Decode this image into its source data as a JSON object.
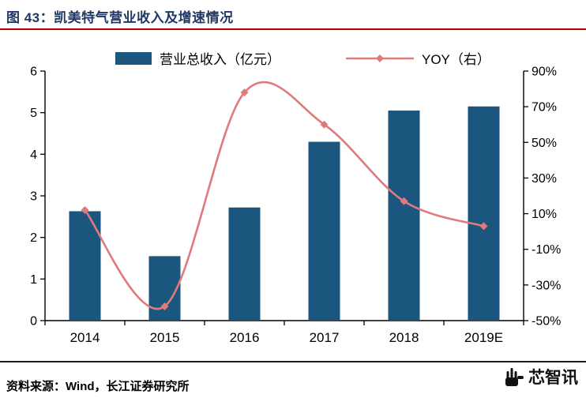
{
  "header": {
    "title": "图 43：凯美特气营业收入及增速情况"
  },
  "footer": {
    "source": "资料来源：Wind，长江证券研究所"
  },
  "logo": {
    "text": "芯智讯"
  },
  "colors": {
    "bar": "#1B567F",
    "line": "#E17A7C",
    "title": "#1F3864",
    "title_rule": "#BF0000",
    "axis": "#000000"
  },
  "chart_data": {
    "type": "bar",
    "subtype": "bar+line combo with dual y-axes",
    "title": "图 43：凯美特气营业收入及增速情况",
    "categories": [
      "2014",
      "2015",
      "2016",
      "2017",
      "2018",
      "2019E"
    ],
    "series": [
      {
        "name": "营业总收入（亿元）",
        "type": "bar",
        "axis": "left",
        "values": [
          2.63,
          1.55,
          2.72,
          4.3,
          5.05,
          5.15
        ]
      },
      {
        "name": "YOY（右）",
        "type": "line",
        "axis": "right",
        "unit": "%",
        "values": [
          12,
          -42,
          78,
          60,
          17,
          3
        ]
      }
    ],
    "left_axis": {
      "min": 0,
      "max": 6,
      "step": 1
    },
    "right_axis": {
      "min": -50,
      "max": 90,
      "step": 20,
      "suffix": "%"
    },
    "legend_position": "top",
    "grid": false
  }
}
